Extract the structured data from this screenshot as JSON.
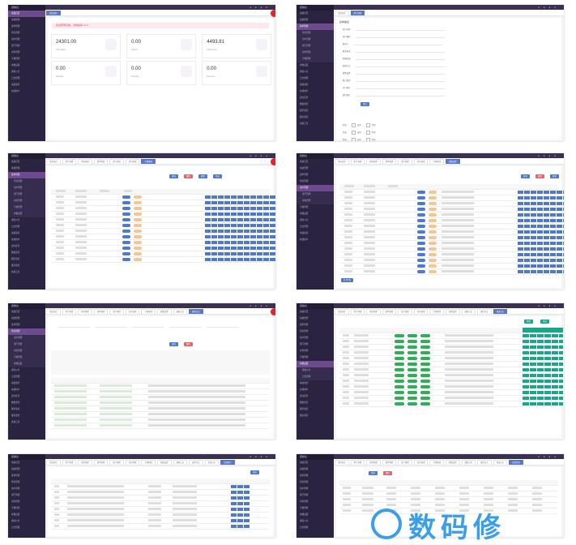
{
  "app": {
    "logo_text": "控制台",
    "menu": [
      "系统首页",
      "系统管理",
      "菜单管理",
      "角色管理",
      "用户管理",
      "部门管理",
      "岗位管理",
      "字典管理",
      "参数设置",
      "通知公告",
      "日志管理",
      "系统监控",
      "在线用户",
      "定时任务",
      "数据监控",
      "服务监控",
      "缓存监控",
      "系统工具",
      "表单构建",
      "代码生成",
      "系统接口"
    ],
    "tabs": [
      "系统首页",
      "用户管理",
      "角色管理",
      "菜单管理",
      "部门管理",
      "岗位管理",
      "字典管理",
      "参数设置",
      "通知公告",
      "操作日志",
      "登录日志",
      "在线用户",
      "定时任务",
      "代码生成"
    ]
  },
  "dashboard": {
    "alert": "欢迎登录系统，当前版本 v1.0",
    "cards": [
      {
        "value": "24301.00",
        "label": "Total Sales"
      },
      {
        "value": "0.00",
        "label": "Orders"
      },
      {
        "value": "4493.81",
        "label": "Total Users"
      },
      {
        "value": "0.00",
        "label": "Refunds"
      },
      {
        "value": "0.00",
        "label": "Pending"
      },
      {
        "value": "0.00",
        "label": "Revenue"
      }
    ]
  },
  "form": {
    "title": "基本信息",
    "fields": [
      "商户名称",
      "商户编码",
      "联系人",
      "联系电话",
      "所属区域",
      "结算方式",
      "费率设置",
      "账户类型",
      "开户银行",
      "银行账号",
      "状态"
    ],
    "submit": "提交",
    "options": [
      "启用",
      "禁用"
    ]
  },
  "list": {
    "search": "查询",
    "reset": "重置",
    "add": "新增",
    "export": "导出",
    "pager": "共 20 条"
  },
  "watermark": {
    "text": "数码修"
  },
  "colors": {
    "sidebar": "#2b2440",
    "primary": "#4f78d0",
    "danger": "#e2676c",
    "success": "#19a78c",
    "record": "#e0242b"
  }
}
